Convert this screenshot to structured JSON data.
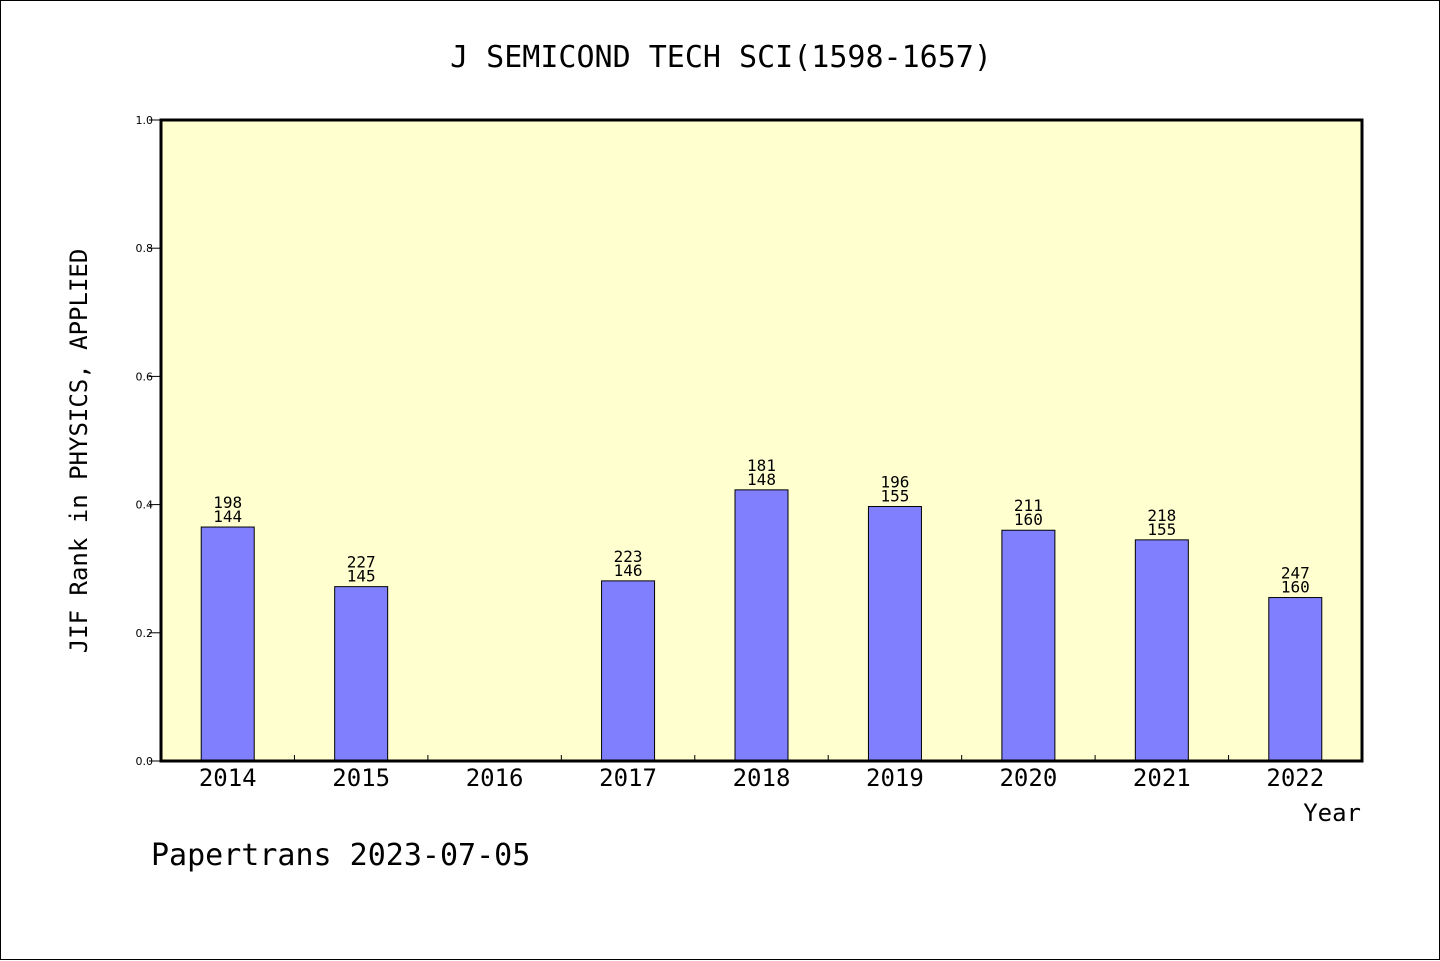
{
  "chart_data": {
    "type": "bar",
    "title": "J SEMICOND TECH SCI(1598-1657)",
    "xlabel": "Year",
    "ylabel": "JIF Rank in PHYSICS, APPLIED",
    "ylim": [
      0,
      1.0
    ],
    "yticks": [
      "0.0",
      "0.2",
      "0.4",
      "0.6",
      "0.8",
      "1.0"
    ],
    "categories": [
      "2014",
      "2015",
      "2016",
      "2017",
      "2018",
      "2019",
      "2020",
      "2021",
      "2022"
    ],
    "values": [
      0.365,
      0.272,
      null,
      0.281,
      0.423,
      0.397,
      0.36,
      0.345,
      0.255
    ],
    "labels_top": [
      "198",
      "227",
      "",
      "223",
      "181",
      "196",
      "211",
      "218",
      "247"
    ],
    "labels_bottom": [
      "144",
      "145",
      "",
      "146",
      "148",
      "155",
      "160",
      "155",
      "160"
    ],
    "grid": false,
    "colors": {
      "plot_bg": "#ffffd0",
      "bar": "#8080ff",
      "bar_edge": "#000000"
    }
  },
  "footer": "Papertrans 2023-07-05"
}
